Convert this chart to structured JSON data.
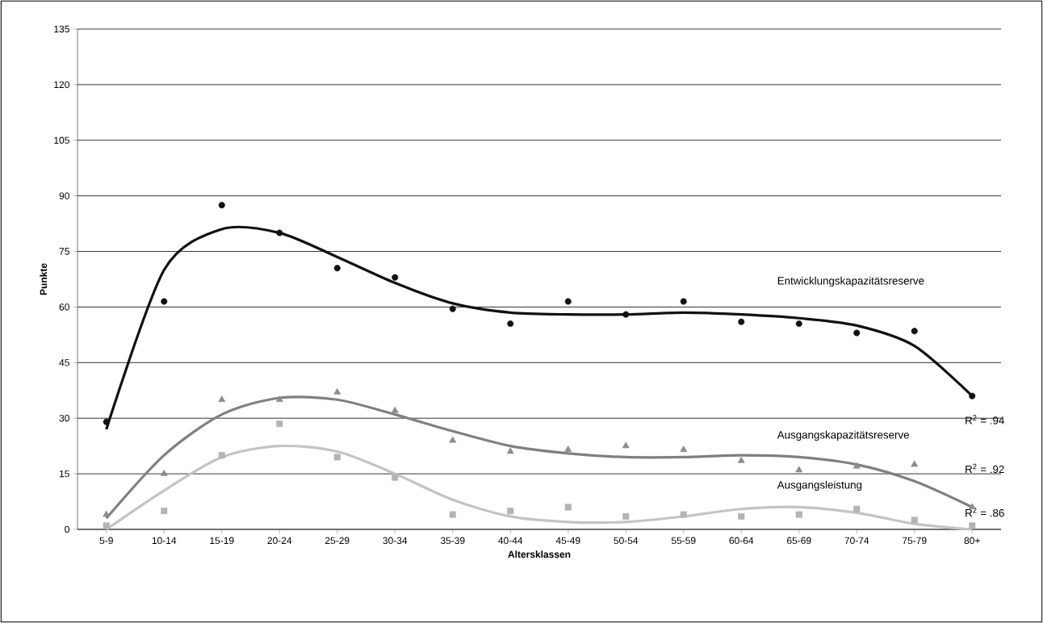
{
  "chart_data": {
    "type": "scatter",
    "xlabel": "Altersklassen",
    "ylabel": "Punkte",
    "categories": [
      "5-9",
      "10-14",
      "15-19",
      "20-24",
      "25-29",
      "30-34",
      "35-39",
      "40-44",
      "45-49",
      "50-54",
      "55-59",
      "60-64",
      "65-69",
      "70-74",
      "75-79",
      "80+"
    ],
    "ylim": [
      0,
      135
    ],
    "yticks": [
      0,
      15,
      30,
      45,
      60,
      75,
      90,
      105,
      120,
      135
    ],
    "grid": "y",
    "series": [
      {
        "marker": "circle",
        "color": "#111111",
        "values": [
          29,
          61.5,
          87.5,
          80,
          70.5,
          68,
          59.5,
          55.5,
          61.5,
          58,
          61.5,
          56,
          55.5,
          53,
          53.5,
          36
        ]
      },
      {
        "marker": "triangle",
        "color": "#8c8c8c",
        "values": [
          4,
          15,
          35,
          35,
          37,
          32,
          24,
          21,
          21.5,
          22.5,
          21.5,
          18.5,
          16,
          17,
          17.5,
          6
        ]
      },
      {
        "marker": "square",
        "color": "#b4b4b4",
        "values": [
          1,
          5,
          20,
          28.5,
          19.5,
          14,
          4,
          5,
          6,
          3.5,
          4,
          3.5,
          4,
          5.5,
          2.5,
          1
        ]
      },
      {
        "type": "line",
        "name": "Entwicklungskapazitätsreserve",
        "color": "#111111",
        "line_style": "solid",
        "values": [
          27,
          70,
          81,
          80,
          73.5,
          66.5,
          61,
          58.5,
          58,
          58,
          58.5,
          58,
          57,
          55,
          49.5,
          36
        ]
      },
      {
        "type": "line",
        "name": "Ausgangskapazitätsreserve",
        "color": "#808080",
        "line_style": "solid",
        "values": [
          3,
          20,
          31,
          35.5,
          35,
          31,
          26.5,
          22.5,
          20.5,
          19.5,
          19.5,
          20,
          19.5,
          17.5,
          13,
          6
        ]
      },
      {
        "type": "line",
        "name": "Ausgangsleistung",
        "color": "#c4c4c4",
        "line_style": "solid",
        "values": [
          0,
          10.5,
          19.5,
          22.5,
          21,
          15,
          8,
          3.5,
          2,
          2,
          3.5,
          5.5,
          6,
          4.5,
          1.5,
          0
        ]
      }
    ],
    "annotations": [
      "R$^{2}$ = .94",
      "R$^{2}$ = .92",
      "R$^{2}$ = .86"
    ]
  }
}
